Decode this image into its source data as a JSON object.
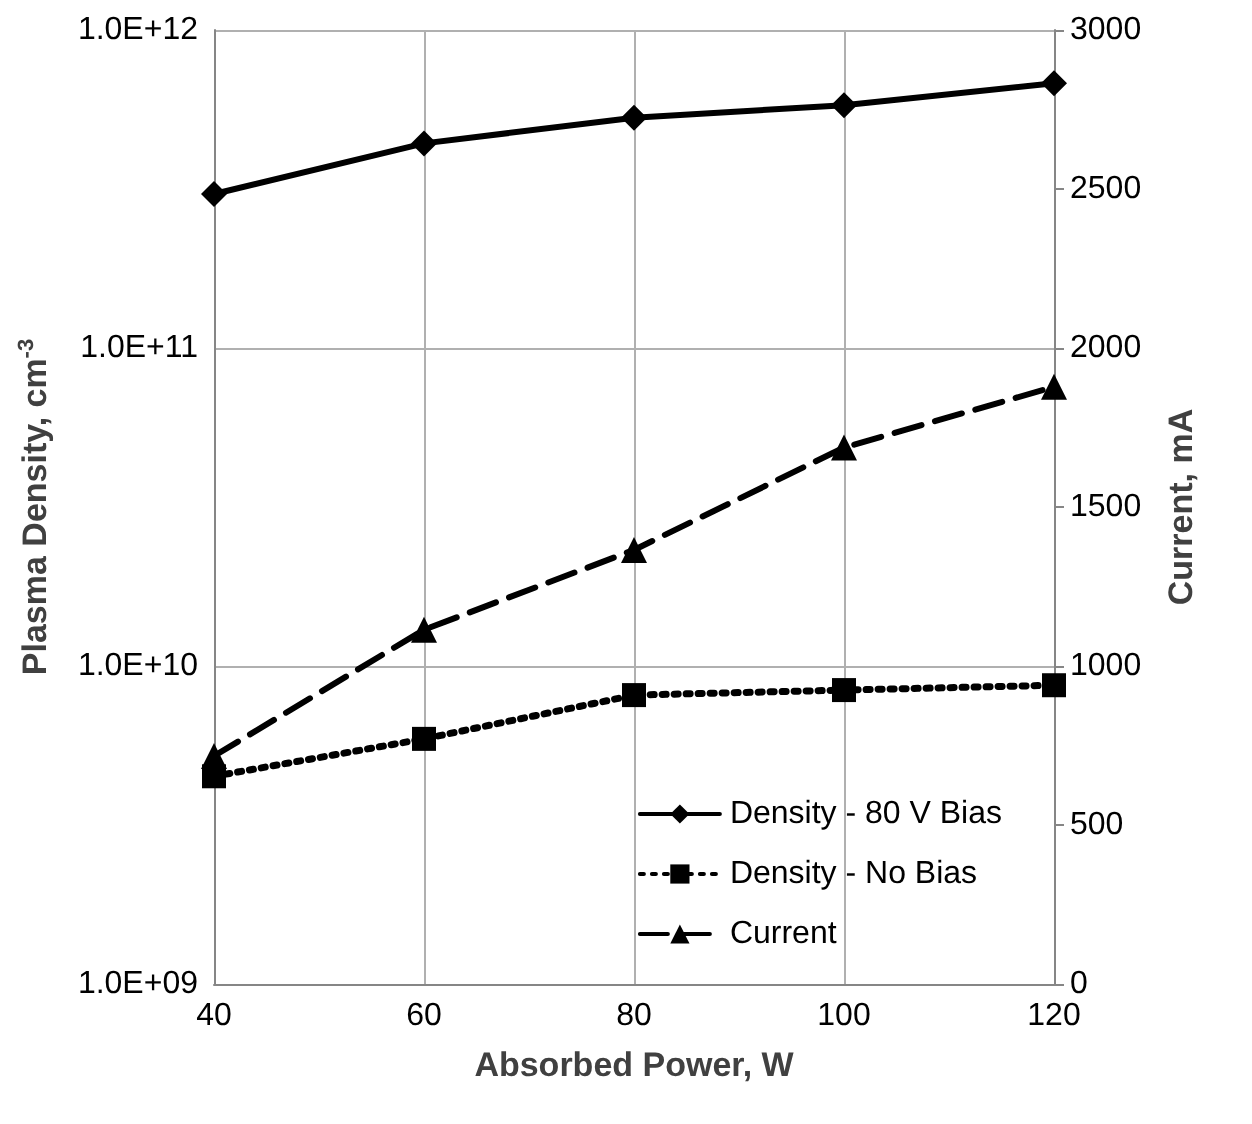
{
  "chart_data": {
    "type": "line",
    "xlabel": "Absorbed Power, W",
    "ylabel": "Plasma Density, cm$^{-3}$",
    "y2label": "Current, mA",
    "x": [
      40,
      60,
      80,
      100,
      120
    ],
    "xlim": [
      40,
      120
    ],
    "xticks": [
      40,
      60,
      80,
      100,
      120
    ],
    "log": "y",
    "ylim": [
      1000000000.0,
      1000000000000.0
    ],
    "yticks": [
      {
        "value": 1000000000.0,
        "label": "1.0E+09"
      },
      {
        "value": 10000000000.0,
        "label": "1.0E+10"
      },
      {
        "value": 100000000000.0,
        "label": "1.0E+11"
      },
      {
        "value": 1000000000000.0,
        "label": "1.0E+12"
      }
    ],
    "y2lim": [
      0,
      3000
    ],
    "y2ticks": [
      0,
      500,
      1000,
      1500,
      2000,
      2500,
      3000
    ],
    "grid": true,
    "legend": "bottom right",
    "series": [
      {
        "name": "Density - 80 V Bias",
        "color": "#000000",
        "marker": "diamond",
        "line_style": "solid",
        "values": [
          305000000000.0,
          440000000000.0,
          530000000000.0,
          580000000000.0,
          680000000000.0
        ]
      },
      {
        "name": "Density - No Bias",
        "color": "#000000",
        "marker": "square",
        "line_style": "dotted",
        "values": [
          4500000000.0,
          5900000000.0,
          8100000000.0,
          8400000000.0,
          8700000000.0
        ]
      },
      {
        "name": "Current",
        "color": "#000000",
        "marker": "triangle",
        "line_style": "dashed",
        "axis": "y2",
        "values": [
          717,
          1114,
          1365,
          1687,
          1878
        ]
      }
    ]
  }
}
